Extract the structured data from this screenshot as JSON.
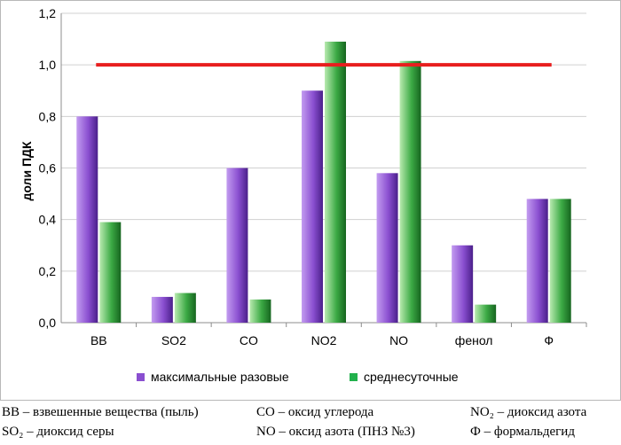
{
  "chart_data": {
    "type": "bar",
    "title": "",
    "xlabel": "",
    "ylabel": "доли ПДК",
    "categories": [
      "ВВ",
      "SO2",
      "CO",
      "NO2",
      "NO",
      "фенол",
      "Ф"
    ],
    "ylim": [
      0,
      1.2
    ],
    "yticks": [
      "0,0",
      "0,2",
      "0,4",
      "0,6",
      "0,8",
      "1,0",
      "1,2"
    ],
    "grid": true,
    "legend_position": "bottom",
    "series": [
      {
        "name": "максимальные разовые",
        "color": "#8a4fd0",
        "values": [
          0.8,
          0.1,
          0.6,
          0.9,
          0.58,
          0.3,
          0.48
        ]
      },
      {
        "name": "среднесуточные",
        "color": "#2f9a3a",
        "values": [
          0.39,
          0.115,
          0.09,
          1.09,
          1.015,
          0.07,
          0.48
        ]
      }
    ],
    "reference_line": {
      "value": 1.0,
      "color": "#e81e1e"
    }
  },
  "notes": [
    {
      "text": "ВВ – взвешенные вещества (пыль)"
    },
    {
      "text": "CO – оксид углерода"
    },
    {
      "text": "NO₂ – диоксид азота"
    },
    {
      "text": "SO₂ – диоксид серы"
    },
    {
      "text": "NO – оксид азота (ПНЗ №3)"
    },
    {
      "text": "Ф – формальдегид"
    }
  ]
}
